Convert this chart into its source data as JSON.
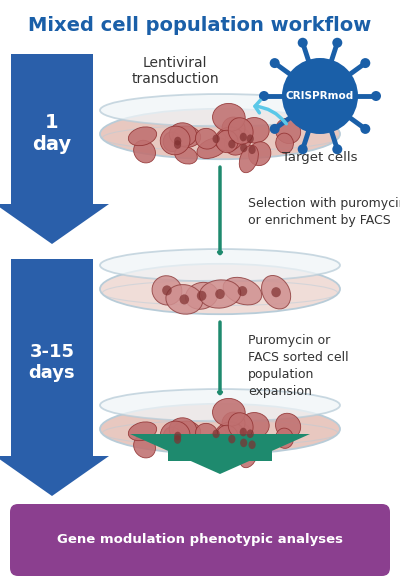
{
  "title": "Mixed cell population workflow",
  "title_color": "#1a5fa8",
  "title_fontsize": 14,
  "background_color": "#ffffff",
  "blue_color": "#2a5faa",
  "green_color": "#1e8a6e",
  "cyan_color": "#5bc8e8",
  "virus_color": "#1a5fa8",
  "virus_label": "CRISPRmod",
  "target_cells_label": "Target cells",
  "lentiviral_text": "Lentiviral\ntransduction",
  "selection_text": "Selection with puromycin\nor enrichment by FACS",
  "puromycin_text": "Puromycin or\nFACS sorted cell\npopulation\nexpansion",
  "bottom_label": "Gene modulation phenotypic analyses",
  "bottom_label_bg": "#8b3f8f",
  "text_color": "#333333",
  "dish_edge_color": "#b8ccd8",
  "dish1_fill": "#e8c8c0",
  "dish2_fill": "#f0ddd8",
  "dish3_fill": "#e8c8c0"
}
